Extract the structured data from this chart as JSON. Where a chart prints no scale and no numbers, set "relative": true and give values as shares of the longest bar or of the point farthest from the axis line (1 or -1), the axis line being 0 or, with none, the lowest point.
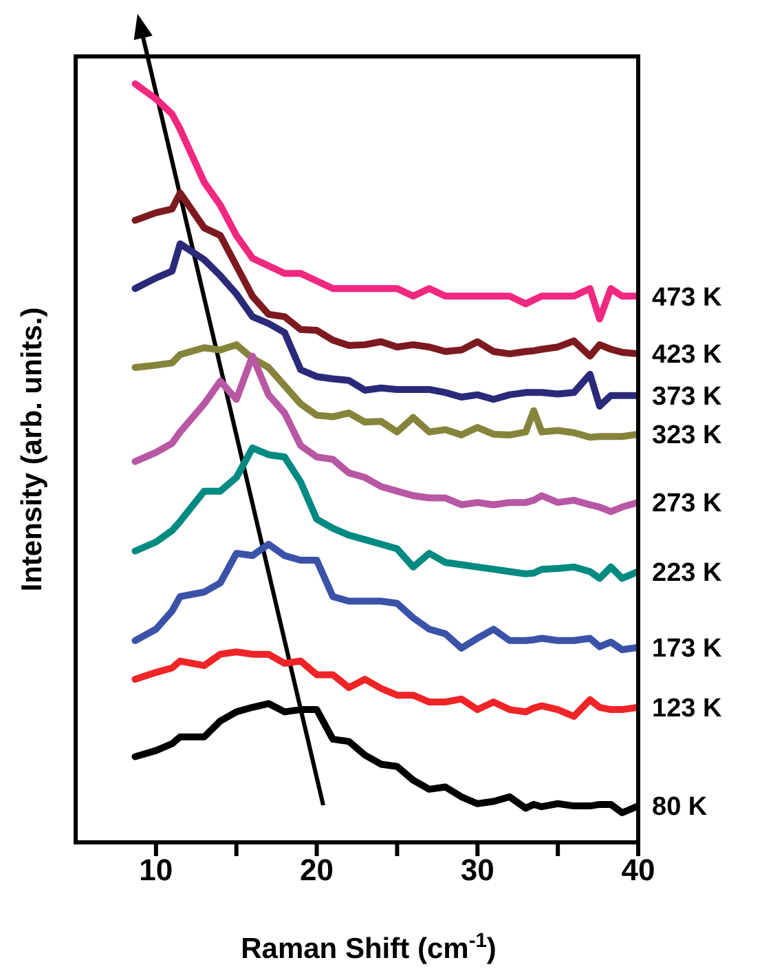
{
  "chart_data": {
    "type": "line",
    "xlabel": "Raman Shift (cm$^{-1}$)",
    "ylabel": "Intensity (arb. units.)",
    "relative": true,
    "legend": false,
    "xlim": [
      5,
      40
    ],
    "xticks": [
      10,
      {
        "value": 15,
        "label": null
      },
      20,
      {
        "value": 25,
        "label": null
      },
      30,
      {
        "value": 35,
        "label": null
      },
      40
    ],
    "x": [
      8.7,
      10,
      11,
      11.5,
      13,
      14,
      15,
      16,
      17,
      18,
      19,
      20,
      21,
      22,
      23,
      24,
      25,
      26,
      27,
      28,
      29,
      30,
      31,
      32,
      33,
      33.5,
      34,
      35,
      36,
      37,
      37.6,
      38.3,
      39,
      40
    ],
    "series": [
      {
        "name": "473 K",
        "color": "#f0287f",
        "values": [
          1.0,
          0.98,
          0.96,
          0.94,
          0.87,
          0.84,
          0.8,
          0.77,
          0.76,
          0.75,
          0.75,
          0.74,
          0.73,
          0.73,
          0.73,
          0.73,
          0.73,
          0.72,
          0.73,
          0.72,
          0.72,
          0.72,
          0.72,
          0.72,
          0.71,
          0.715,
          0.72,
          0.72,
          0.72,
          0.73,
          0.69,
          0.73,
          0.72,
          0.72
        ]
      },
      {
        "name": "423 K",
        "color": "#7d1a1f",
        "values": [
          0.82,
          0.83,
          0.835,
          0.856,
          0.81,
          0.8,
          0.76,
          0.72,
          0.696,
          0.693,
          0.676,
          0.675,
          0.662,
          0.655,
          0.656,
          0.66,
          0.653,
          0.656,
          0.653,
          0.647,
          0.649,
          0.66,
          0.647,
          0.644,
          0.647,
          0.648,
          0.65,
          0.653,
          0.661,
          0.641,
          0.656,
          0.65,
          0.646,
          0.644
        ]
      },
      {
        "name": "373 K",
        "color": "#2a2a7a",
        "values": [
          0.73,
          0.744,
          0.753,
          0.789,
          0.768,
          0.747,
          0.723,
          0.693,
          0.684,
          0.672,
          0.623,
          0.614,
          0.611,
          0.609,
          0.596,
          0.599,
          0.597,
          0.597,
          0.597,
          0.593,
          0.587,
          0.59,
          0.584,
          0.59,
          0.593,
          0.593,
          0.593,
          0.591,
          0.593,
          0.617,
          0.575,
          0.589,
          0.589,
          0.589
        ]
      },
      {
        "name": "323 K",
        "color": "#85843a",
        "values": [
          0.626,
          0.629,
          0.632,
          0.643,
          0.652,
          0.649,
          0.656,
          0.638,
          0.626,
          0.602,
          0.578,
          0.563,
          0.561,
          0.566,
          0.554,
          0.555,
          0.541,
          0.56,
          0.541,
          0.544,
          0.537,
          0.547,
          0.538,
          0.537,
          0.541,
          0.569,
          0.541,
          0.543,
          0.54,
          0.534,
          0.535,
          0.535,
          0.535,
          0.538
        ]
      },
      {
        "name": "273 K",
        "color": "#b857a3",
        "values": [
          0.502,
          0.514,
          0.526,
          0.541,
          0.578,
          0.608,
          0.584,
          0.641,
          0.59,
          0.566,
          0.523,
          0.508,
          0.505,
          0.487,
          0.481,
          0.469,
          0.463,
          0.457,
          0.454,
          0.454,
          0.445,
          0.448,
          0.445,
          0.448,
          0.448,
          0.451,
          0.457,
          0.448,
          0.451,
          0.445,
          0.442,
          0.436,
          0.442,
          0.448
        ]
      },
      {
        "name": "223 K",
        "color": "#008a82",
        "values": [
          0.384,
          0.396,
          0.411,
          0.423,
          0.463,
          0.463,
          0.481,
          0.52,
          0.511,
          0.508,
          0.475,
          0.426,
          0.414,
          0.405,
          0.399,
          0.393,
          0.387,
          0.363,
          0.381,
          0.369,
          0.366,
          0.363,
          0.36,
          0.357,
          0.354,
          0.355,
          0.36,
          0.361,
          0.363,
          0.357,
          0.348,
          0.363,
          0.348,
          0.357
        ]
      },
      {
        "name": "173 K",
        "color": "#3a52a8",
        "values": [
          0.266,
          0.281,
          0.305,
          0.324,
          0.33,
          0.342,
          0.381,
          0.378,
          0.393,
          0.378,
          0.372,
          0.372,
          0.324,
          0.318,
          0.318,
          0.318,
          0.315,
          0.296,
          0.281,
          0.275,
          0.256,
          0.269,
          0.281,
          0.266,
          0.266,
          0.267,
          0.269,
          0.266,
          0.266,
          0.269,
          0.258,
          0.264,
          0.254,
          0.257
        ]
      },
      {
        "name": "123 K",
        "color": "#ee2427",
        "values": [
          0.215,
          0.224,
          0.23,
          0.239,
          0.233,
          0.248,
          0.251,
          0.248,
          0.248,
          0.236,
          0.239,
          0.221,
          0.221,
          0.204,
          0.215,
          0.203,
          0.194,
          0.194,
          0.185,
          0.185,
          0.189,
          0.175,
          0.185,
          0.175,
          0.172,
          0.177,
          0.18,
          0.175,
          0.166,
          0.188,
          0.178,
          0.175,
          0.175,
          0.178
        ]
      },
      {
        "name": "80 K",
        "color": "#000000",
        "values": [
          0.113,
          0.121,
          0.13,
          0.139,
          0.139,
          0.16,
          0.172,
          0.178,
          0.183,
          0.172,
          0.175,
          0.175,
          0.136,
          0.133,
          0.115,
          0.103,
          0.1,
          0.082,
          0.07,
          0.073,
          0.06,
          0.051,
          0.054,
          0.06,
          0.045,
          0.05,
          0.047,
          0.051,
          0.048,
          0.048,
          0.05,
          0.05,
          0.039,
          0.048
        ]
      }
    ]
  }
}
